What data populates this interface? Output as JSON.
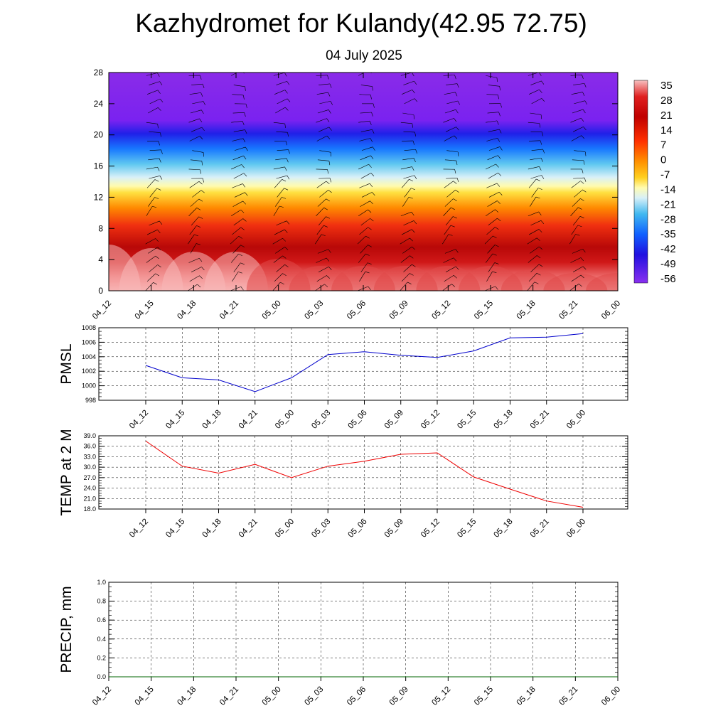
{
  "header": {
    "title": "Kazhydromet for Kulandy(42.95 72.75)",
    "date": "04 July 2025"
  },
  "colors": {
    "pmsl_line": "#0000cc",
    "temp_line": "#ee0000",
    "precip_line": "#006600",
    "wind_barb": "#000000"
  },
  "chart_data": [
    {
      "type": "heatmap",
      "name": "vertical-section",
      "x_ticks": [
        "04_12",
        "04_15",
        "04_18",
        "04_21",
        "05_00",
        "05_03",
        "05_06",
        "05_09",
        "05_12",
        "05_15",
        "05_18",
        "05_21",
        "06_00"
      ],
      "y_ticks": [
        "0",
        "4",
        "8",
        "12",
        "16",
        "20",
        "24",
        "28"
      ],
      "ylim": [
        0,
        28
      ],
      "colorbar_labels": [
        "35",
        "28",
        "21",
        "14",
        "7",
        "0",
        "-7",
        "-14",
        "-21",
        "-28",
        "-35",
        "-42",
        "-49",
        "-56"
      ],
      "colorbar_range": [
        -63,
        38
      ],
      "surface_temp_profile": [
        36,
        35,
        34,
        34,
        32,
        30,
        30,
        30,
        30,
        30,
        29,
        28,
        28
      ],
      "overlay": "wind barbs"
    },
    {
      "type": "line",
      "name": "pmsl",
      "ylabel": "PMSL",
      "categories": [
        "04_12",
        "04_15",
        "04_18",
        "04_21",
        "05_00",
        "05_03",
        "05_06",
        "05_09",
        "05_12",
        "05_15",
        "05_18",
        "05_21",
        "06_00"
      ],
      "values": [
        1002.8,
        1001.1,
        1000.8,
        999.2,
        1001.1,
        1004.3,
        1004.7,
        1004.2,
        1003.9,
        1004.8,
        1006.6,
        1006.7,
        1007.2
      ],
      "ylim": [
        998,
        1008
      ],
      "y_ticks": [
        "998",
        "1000",
        "1002",
        "1004",
        "1006",
        "1008"
      ],
      "grid": true
    },
    {
      "type": "line",
      "name": "temp-2m",
      "ylabel": "TEMP at 2 M",
      "categories": [
        "04_12",
        "04_15",
        "04_18",
        "04_21",
        "05_00",
        "05_03",
        "05_06",
        "05_09",
        "05_12",
        "05_15",
        "05_18",
        "05_21",
        "06_00"
      ],
      "values": [
        37.5,
        30.3,
        28.3,
        30.8,
        27.0,
        30.3,
        31.7,
        33.7,
        34.1,
        27.2,
        23.7,
        20.3,
        18.5
      ],
      "ylim": [
        18,
        39
      ],
      "y_ticks": [
        "18.0",
        "21.0",
        "24.0",
        "27.0",
        "30.0",
        "33.0",
        "36.0",
        "39.0"
      ],
      "grid": true
    },
    {
      "type": "line",
      "name": "precip",
      "ylabel": "PRECIP, mm",
      "categories": [
        "04_12",
        "04_15",
        "04_18",
        "04_21",
        "05_00",
        "05_03",
        "05_06",
        "05_09",
        "05_12",
        "05_15",
        "05_18",
        "05_21",
        "06_00"
      ],
      "values": [
        0,
        0,
        0,
        0,
        0,
        0,
        0,
        0,
        0,
        0,
        0,
        0,
        0
      ],
      "ylim": [
        0,
        1
      ],
      "y_ticks": [
        "0.0",
        "0.2",
        "0.4",
        "0.6",
        "0.8",
        "1.0"
      ],
      "grid": true
    }
  ]
}
